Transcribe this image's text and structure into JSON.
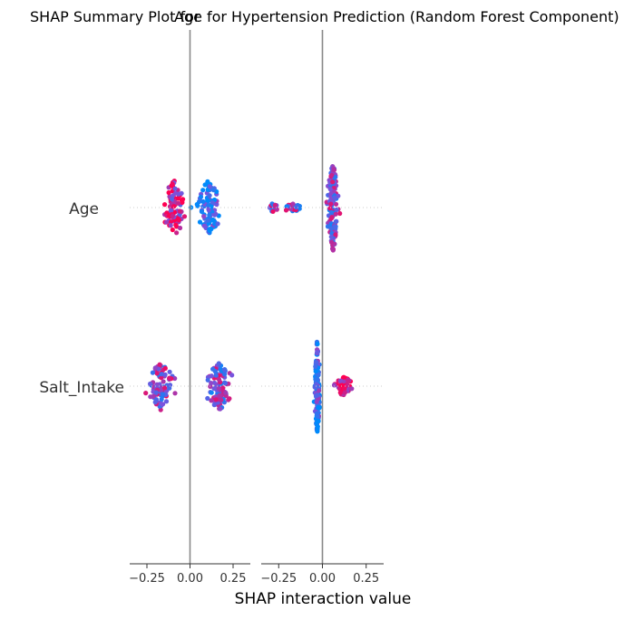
{
  "chart_data": {
    "type": "scatter",
    "subtype": "shap-interaction-summary",
    "title_left": "SHAP Summary Plot for",
    "title_right": "Age",
    "title_overlap": "for Hypertension Prediction (Random Forest Component)",
    "xlabel": "SHAP interaction value",
    "features": [
      "Age",
      "Salt_Intake"
    ],
    "panels": [
      "Age",
      "Salt_Intake"
    ],
    "xlim": [
      -0.35,
      0.35
    ],
    "xticks": [
      -0.25,
      0.0,
      0.25
    ],
    "xtick_labels": [
      "−0.25",
      "0.00",
      "0.25"
    ],
    "colormap": [
      "#008afb",
      "#ff0052"
    ],
    "color_meaning": "feature value low → high",
    "cells": [
      {
        "panel": "Age",
        "feature": "Age",
        "clusters": [
          {
            "center": -0.09,
            "spread": 0.055,
            "n": 85,
            "color_mix": 0.8,
            "vspread": 1.0
          },
          {
            "center": 0.11,
            "spread": 0.06,
            "n": 95,
            "color_mix": 0.15,
            "vspread": 1.0
          }
        ]
      },
      {
        "panel": "Age",
        "feature": "Salt_Intake",
        "clusters": [
          {
            "center": -0.17,
            "spread": 0.06,
            "n": 90,
            "color_mix": 0.55,
            "vspread": 0.85
          },
          {
            "center": 0.17,
            "spread": 0.065,
            "n": 95,
            "color_mix": 0.5,
            "vspread": 0.85
          }
        ]
      },
      {
        "panel": "Salt_Intake",
        "feature": "Age",
        "clusters": [
          {
            "center": -0.28,
            "spread": 0.035,
            "n": 18,
            "color_mix": 0.6,
            "vspread": 0.15
          },
          {
            "center": -0.17,
            "spread": 0.05,
            "n": 25,
            "color_mix": 0.5,
            "vspread": 0.15
          },
          {
            "center": 0.06,
            "spread": 0.025,
            "n": 150,
            "color_mix": 0.45,
            "vspread": 1.6
          }
        ]
      },
      {
        "panel": "Salt_Intake",
        "feature": "Salt_Intake",
        "clusters": [
          {
            "center": -0.03,
            "spread": 0.012,
            "n": 150,
            "color_mix": 0.2,
            "vspread": 1.7
          },
          {
            "center": 0.12,
            "spread": 0.04,
            "n": 60,
            "color_mix": 0.95,
            "vspread": 0.35
          }
        ]
      }
    ]
  }
}
